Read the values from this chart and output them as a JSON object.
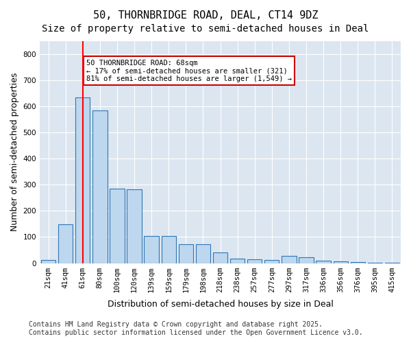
{
  "title_line1": "50, THORNBRIDGE ROAD, DEAL, CT14 9DZ",
  "title_line2": "Size of property relative to semi-detached houses in Deal",
  "xlabel": "Distribution of semi-detached houses by size in Deal",
  "ylabel": "Number of semi-detached properties",
  "categories": [
    "21sqm",
    "41sqm",
    "61sqm",
    "80sqm",
    "100sqm",
    "120sqm",
    "139sqm",
    "159sqm",
    "179sqm",
    "198sqm",
    "218sqm",
    "238sqm",
    "257sqm",
    "277sqm",
    "297sqm",
    "317sqm",
    "336sqm",
    "356sqm",
    "376sqm",
    "395sqm",
    "415sqm"
  ],
  "values": [
    12,
    148,
    635,
    585,
    285,
    282,
    103,
    103,
    72,
    72,
    42,
    17,
    14,
    12,
    28,
    22,
    8,
    7,
    3,
    2,
    1
  ],
  "bar_color": "#bdd7ee",
  "bar_edge_color": "#2e75b6",
  "red_line_index": 2,
  "red_line_x": 2,
  "annotation_title": "50 THORNBRIDGE ROAD: 68sqm",
  "annotation_line2": "← 17% of semi-detached houses are smaller (321)",
  "annotation_line3": "81% of semi-detached houses are larger (1,549) →",
  "annotation_box_color": "#ffffff",
  "annotation_box_edge_color": "#cc0000",
  "ylim": [
    0,
    850
  ],
  "yticks": [
    0,
    100,
    200,
    300,
    400,
    500,
    600,
    700,
    800
  ],
  "footer_line1": "Contains HM Land Registry data © Crown copyright and database right 2025.",
  "footer_line2": "Contains public sector information licensed under the Open Government Licence v3.0.",
  "bg_color": "#dce6f1",
  "plot_bg_color": "#dce6f1",
  "title_fontsize": 11,
  "subtitle_fontsize": 10,
  "axis_label_fontsize": 9,
  "tick_fontsize": 7.5,
  "footer_fontsize": 7
}
